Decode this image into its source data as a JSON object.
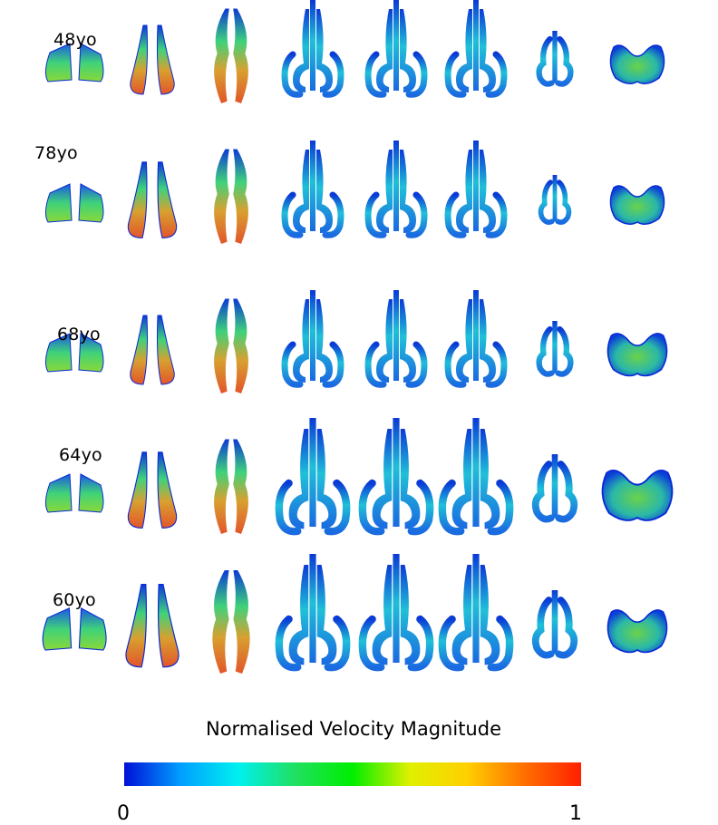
{
  "rows": [
    {
      "label": "48yo"
    },
    {
      "label": "78yo"
    },
    {
      "label": "68yo"
    },
    {
      "label": "64yo"
    },
    {
      "label": "60yo"
    }
  ],
  "colorbar": {
    "title": "Normalised Velocity Magnitude",
    "min_label": "0",
    "max_label": "1",
    "stops": [
      "#0010d8",
      "#00a0ff",
      "#00f0f0",
      "#20e060",
      "#00ee00",
      "#e0f000",
      "#ffd000",
      "#ff7000",
      "#ff2000"
    ]
  },
  "colors": {
    "low": "#0a2ad6",
    "mid_low": "#1fb8d8",
    "mid": "#3fd27a",
    "mid_high": "#b4d830",
    "high": "#e2552a"
  }
}
